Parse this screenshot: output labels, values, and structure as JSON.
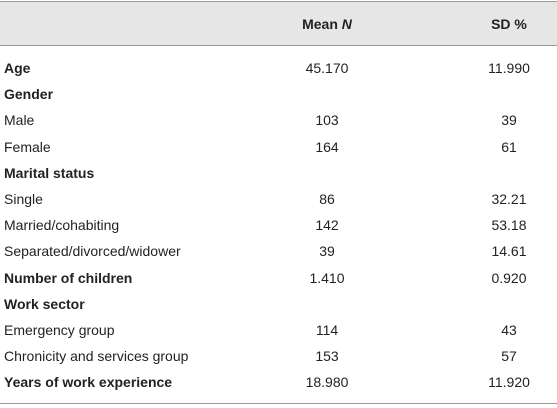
{
  "table": {
    "header": {
      "mean": {
        "text": "Mean",
        "emphasis": "N"
      },
      "sd": "SD %"
    },
    "rows": [
      {
        "label": "Age",
        "mean": "45.170",
        "sd": "11.990",
        "bold": true
      },
      {
        "label": "Gender",
        "bold": true
      },
      {
        "label": "Male",
        "mean": "103",
        "sd": "39"
      },
      {
        "label": "Female",
        "mean": "164",
        "sd": "61"
      },
      {
        "label": "Marital status",
        "bold": true
      },
      {
        "label": "Single",
        "mean": "86",
        "sd": "32.21"
      },
      {
        "label": "Married/cohabiting",
        "mean": "142",
        "sd": "53.18"
      },
      {
        "label": "Separated/divorced/widower",
        "mean": "39",
        "sd": "14.61"
      },
      {
        "label": "Number of children",
        "mean": "1.410",
        "sd": "0.920",
        "bold": true
      },
      {
        "label": "Work sector",
        "bold": true
      },
      {
        "label": "Emergency group",
        "mean": "114",
        "sd": "43"
      },
      {
        "label": "Chronicity and services group",
        "mean": "153",
        "sd": "57"
      },
      {
        "label": "Years of work experience",
        "mean": "18.980",
        "sd": "11.920",
        "bold": true
      }
    ]
  }
}
